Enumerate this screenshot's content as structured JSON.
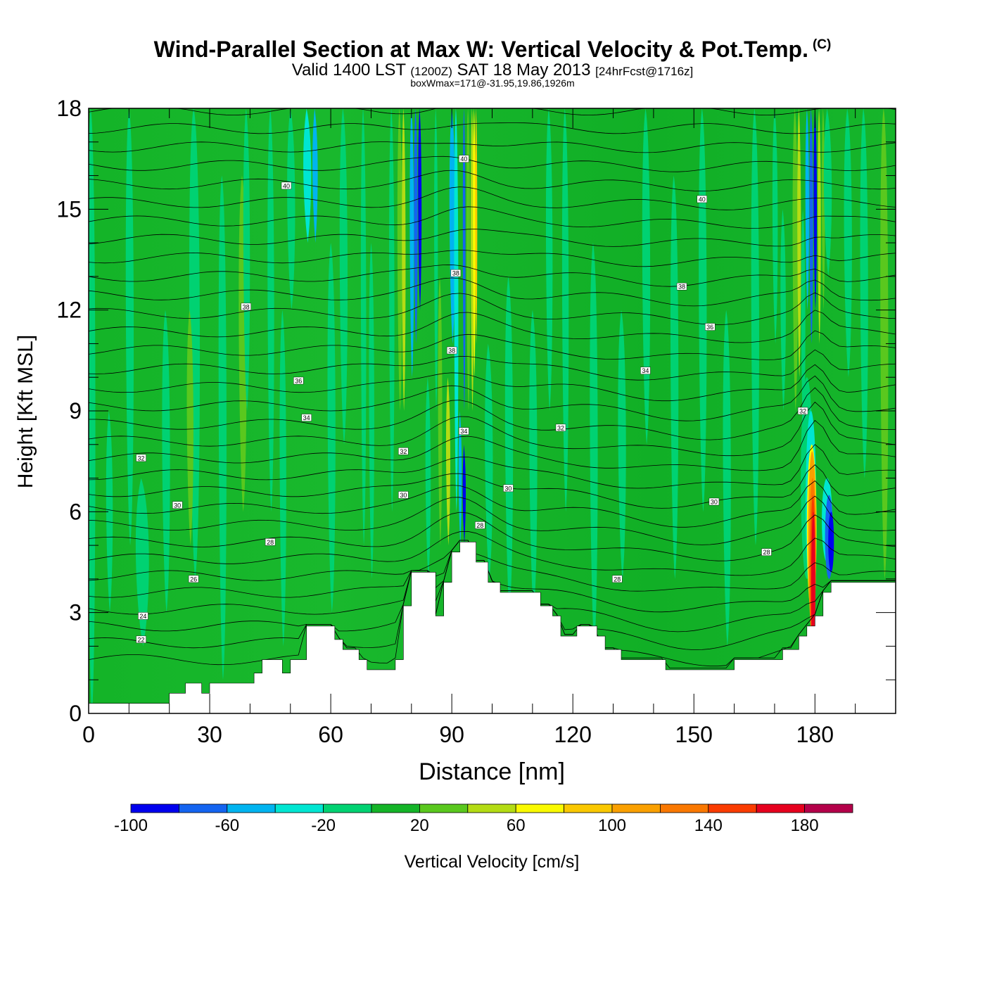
{
  "header": {
    "title": "Wind-Parallel Section at Max W: Vertical Velocity & Pot.Temp.",
    "copyright": "(C)",
    "subtitle_main": "Valid 1400 LST",
    "subtitle_utc": "(1200Z)",
    "subtitle_date": "SAT 18 May 2013",
    "subtitle_fcst": "[24hrFcst@1716z]",
    "subtitle2": "boxWmax=171@-31.95,19.86,1926m"
  },
  "chart_data": {
    "type": "heatmap",
    "xlabel": "Distance [nm]",
    "ylabel": "Height [Kft MSL]",
    "xlim": [
      0,
      200
    ],
    "ylim": [
      0,
      18
    ],
    "xticks": [
      0,
      30,
      60,
      90,
      120,
      150,
      180
    ],
    "yticks": [
      0,
      3,
      6,
      9,
      12,
      15,
      18
    ],
    "grid": false,
    "colorbar": {
      "label": "Vertical Velocity [cm/s]",
      "levels": [
        -100,
        -80,
        -60,
        -40,
        -20,
        0,
        20,
        40,
        60,
        80,
        100,
        120,
        140,
        160,
        180,
        200
      ],
      "tick_labels": [
        "-100",
        "-60",
        "-20",
        "20",
        "60",
        "100",
        "140",
        "180"
      ],
      "colors": [
        "#0000ee",
        "#1464f0",
        "#00b4f0",
        "#00e6d2",
        "#00d272",
        "#14b428",
        "#5ac81e",
        "#b4dc14",
        "#fafa00",
        "#fac800",
        "#faa000",
        "#fa7800",
        "#fa3c00",
        "#e6001e",
        "#b4004a"
      ]
    },
    "terrain_kft": [
      [
        0,
        0.3
      ],
      [
        20,
        0.3
      ],
      [
        20,
        0.6
      ],
      [
        24,
        0.6
      ],
      [
        24,
        0.9
      ],
      [
        28,
        0.9
      ],
      [
        28,
        0.6
      ],
      [
        30,
        0.6
      ],
      [
        30,
        0.9
      ],
      [
        41,
        0.9
      ],
      [
        41,
        1.2
      ],
      [
        43,
        1.2
      ],
      [
        43,
        1.6
      ],
      [
        48,
        1.6
      ],
      [
        48,
        1.2
      ],
      [
        50,
        1.2
      ],
      [
        50,
        1.6
      ],
      [
        54,
        1.6
      ],
      [
        54,
        2.6
      ],
      [
        61,
        2.6
      ],
      [
        61,
        2.2
      ],
      [
        63,
        2.2
      ],
      [
        63,
        1.9
      ],
      [
        67,
        1.9
      ],
      [
        67,
        1.6
      ],
      [
        69,
        1.6
      ],
      [
        69,
        1.3
      ],
      [
        76,
        1.3
      ],
      [
        76,
        1.6
      ],
      [
        78,
        1.6
      ],
      [
        78,
        3.2
      ],
      [
        80,
        3.2
      ],
      [
        80,
        4.2
      ],
      [
        86,
        4.2
      ],
      [
        86,
        2.9
      ],
      [
        88,
        2.9
      ],
      [
        88,
        3.9
      ],
      [
        90,
        3.9
      ],
      [
        90,
        4.8
      ],
      [
        92,
        4.8
      ],
      [
        92,
        5.1
      ],
      [
        96,
        5.1
      ],
      [
        96,
        4.5
      ],
      [
        99,
        4.5
      ],
      [
        99,
        3.9
      ],
      [
        102,
        3.9
      ],
      [
        102,
        3.6
      ],
      [
        112,
        3.6
      ],
      [
        112,
        3.2
      ],
      [
        115,
        3.2
      ],
      [
        115,
        2.9
      ],
      [
        117,
        2.9
      ],
      [
        117,
        2.3
      ],
      [
        121,
        2.3
      ],
      [
        121,
        2.6
      ],
      [
        126,
        2.6
      ],
      [
        126,
        2.3
      ],
      [
        128,
        2.3
      ],
      [
        128,
        1.9
      ],
      [
        132,
        1.9
      ],
      [
        132,
        1.6
      ],
      [
        143,
        1.6
      ],
      [
        143,
        1.3
      ],
      [
        160,
        1.3
      ],
      [
        160,
        1.6
      ],
      [
        172,
        1.6
      ],
      [
        172,
        1.9
      ],
      [
        176,
        1.9
      ],
      [
        176,
        2.3
      ],
      [
        178,
        2.3
      ],
      [
        178,
        2.6
      ],
      [
        180,
        2.6
      ],
      [
        180,
        2.9
      ],
      [
        182,
        2.9
      ],
      [
        182,
        3.6
      ],
      [
        184,
        3.6
      ],
      [
        184,
        3.9
      ],
      [
        200,
        3.9
      ]
    ],
    "contours": {
      "variable": "Pot.Temp.",
      "labels": [
        {
          "value": "22",
          "x": 13,
          "y": 2.2
        },
        {
          "value": "24",
          "x": 13.5,
          "y": 2.9
        },
        {
          "value": "26",
          "x": 26,
          "y": 4.0
        },
        {
          "value": "28",
          "x": 45,
          "y": 5.1
        },
        {
          "value": "30",
          "x": 22,
          "y": 6.2
        },
        {
          "value": "32",
          "x": 13,
          "y": 7.6
        },
        {
          "value": "34",
          "x": 54,
          "y": 8.8
        },
        {
          "value": "36",
          "x": 52,
          "y": 9.9
        },
        {
          "value": "38",
          "x": 39,
          "y": 12.1
        },
        {
          "value": "40",
          "x": 49,
          "y": 15.7
        },
        {
          "value": "32",
          "x": 78,
          "y": 7.8
        },
        {
          "value": "30",
          "x": 78,
          "y": 6.5
        },
        {
          "value": "34",
          "x": 93,
          "y": 8.4
        },
        {
          "value": "38",
          "x": 90,
          "y": 10.8
        },
        {
          "value": "38",
          "x": 91,
          "y": 13.1
        },
        {
          "value": "40",
          "x": 93,
          "y": 16.5
        },
        {
          "value": "28",
          "x": 97,
          "y": 5.6
        },
        {
          "value": "30",
          "x": 104,
          "y": 6.7
        },
        {
          "value": "32",
          "x": 117,
          "y": 8.5
        },
        {
          "value": "34",
          "x": 138,
          "y": 10.2
        },
        {
          "value": "36",
          "x": 154,
          "y": 11.5
        },
        {
          "value": "38",
          "x": 147,
          "y": 12.7
        },
        {
          "value": "40",
          "x": 152,
          "y": 15.3
        },
        {
          "value": "28",
          "x": 131,
          "y": 4.0
        },
        {
          "value": "30",
          "x": 155,
          "y": 6.3
        },
        {
          "value": "28",
          "x": 168,
          "y": 4.8
        },
        {
          "value": "32",
          "x": 177,
          "y": 9.0
        }
      ]
    }
  }
}
